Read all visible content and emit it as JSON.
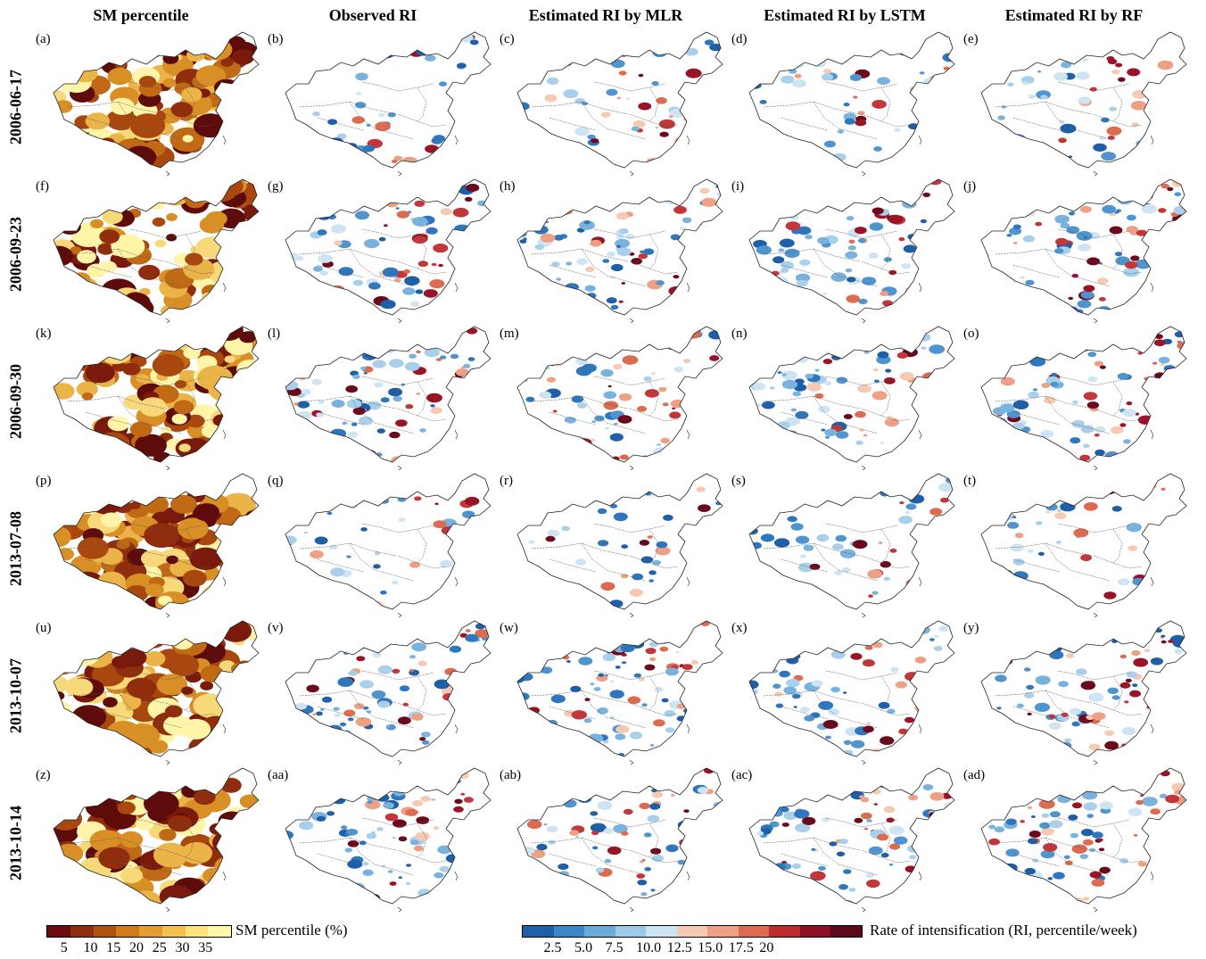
{
  "columns": [
    "SM percentile",
    "Observed RI",
    "Estimated RI by MLR",
    "Estimated RI by LSTM",
    "Estimated RI by RF"
  ],
  "rows": [
    {
      "date": "2006-06-17",
      "labels": [
        "(a)",
        "(b)",
        "(c)",
        "(d)",
        "(e)"
      ]
    },
    {
      "date": "2006-09-23",
      "labels": [
        "(f)",
        "(g)",
        "(h)",
        "(i)",
        "(j)"
      ]
    },
    {
      "date": "2006-09-30",
      "labels": [
        "(k)",
        "(l)",
        "(m)",
        "(n)",
        "(o)"
      ]
    },
    {
      "date": "2013-07-08",
      "labels": [
        "(p)",
        "(q)",
        "(r)",
        "(s)",
        "(t)"
      ]
    },
    {
      "date": "2013-10-07",
      "labels": [
        "(u)",
        "(v)",
        "(w)",
        "(x)",
        "(y)"
      ]
    },
    {
      "date": "2013-10-14",
      "labels": [
        "(z)",
        "(aa)",
        "(ab)",
        "(ac)",
        "(ad)"
      ]
    }
  ],
  "legends": {
    "sm": {
      "title": "SM percentile (%)",
      "ticks": [
        "5",
        "10",
        "15",
        "20",
        "25",
        "30",
        "35"
      ],
      "colors": [
        "#6b0d0d",
        "#8f2d0c",
        "#b0520f",
        "#d07a1a",
        "#e59d30",
        "#f2c14e",
        "#fbe27a",
        "#fff7a8"
      ]
    },
    "ri": {
      "title": "Rate of intensification (RI, percentile/week)",
      "ticks": [
        "2.5",
        "5.0",
        "7.5",
        "10.0",
        "12.5",
        "15.0",
        "17.5",
        "20"
      ],
      "colors": [
        "#1f5fa8",
        "#3b86c6",
        "#6aa9d9",
        "#9ccae8",
        "#cde4f2",
        "#f6c9b3",
        "#eea085",
        "#dd6b50",
        "#bf2c2f",
        "#8e1027",
        "#5c0a1b"
      ]
    }
  }
}
